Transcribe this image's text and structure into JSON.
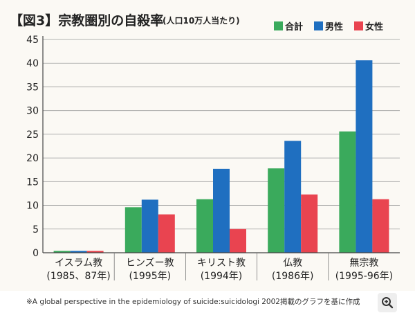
{
  "caption": "※A global perspective in the epidemiology of suicide:suicidologi 2002掲載のグラフを基に作成",
  "zoom_icon": "zoom-in-icon",
  "chart_data": {
    "type": "bar",
    "title": "【図3】宗教圏別の自殺率",
    "subtitle": "(人口10万人当たり)",
    "categories": [
      {
        "line1": "イスラム教",
        "line2": "(1985、87年)"
      },
      {
        "line1": "ヒンズー教",
        "line2": "(1995年)"
      },
      {
        "line1": "キリスト教",
        "line2": "(1994年)"
      },
      {
        "line1": "仏教",
        "line2": "(1986年)"
      },
      {
        "line1": "無宗教",
        "line2": "(1995-96年)"
      }
    ],
    "series": [
      {
        "name": "合計",
        "color": "#3aaa5c",
        "values": [
          0.4,
          9.6,
          11.3,
          17.8,
          25.6
        ]
      },
      {
        "name": "男性",
        "color": "#1f6fc0",
        "values": [
          0.4,
          11.2,
          17.7,
          23.6,
          40.6
        ]
      },
      {
        "name": "女性",
        "color": "#e94450",
        "values": [
          0.4,
          8.1,
          5.0,
          12.3,
          11.3
        ]
      }
    ],
    "yticks": [
      "0",
      "5",
      "10",
      "15",
      "20",
      "25",
      "30",
      "35",
      "40",
      "45"
    ],
    "ylim": [
      0,
      45
    ],
    "grid": true,
    "legend_position": "top-right"
  }
}
